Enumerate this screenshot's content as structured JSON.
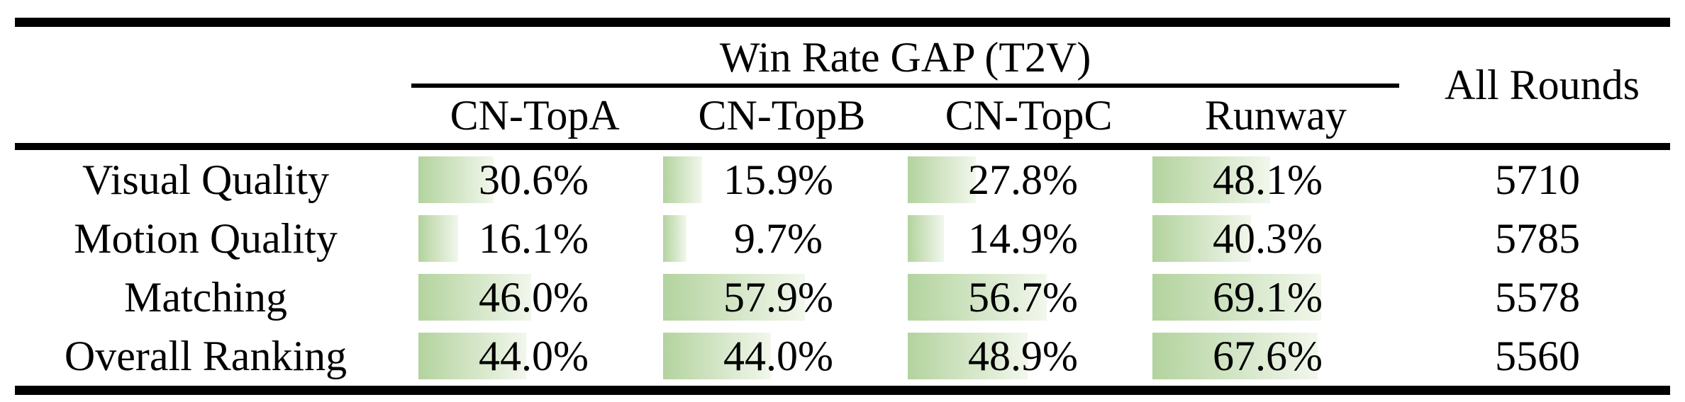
{
  "colors": {
    "bar_gradient_start": "#b3d39e",
    "bar_gradient_end": "#f2f7ec",
    "rule_color": "#000000",
    "background": "#ffffff"
  },
  "table": {
    "group_header": "Win Rate GAP (T2V)",
    "all_rounds_header": "All Rounds",
    "columns": [
      "CN-TopA",
      "CN-TopB",
      "CN-TopC",
      "Runway"
    ],
    "rows": [
      {
        "label": "Visual Quality",
        "cells": [
          {
            "text": "30.6%",
            "pct": 30.6
          },
          {
            "text": "15.9%",
            "pct": 15.9
          },
          {
            "text": "27.8%",
            "pct": 27.8
          },
          {
            "text": "48.1%",
            "pct": 48.1
          }
        ],
        "all_rounds": "5710"
      },
      {
        "label": "Motion Quality",
        "cells": [
          {
            "text": "16.1%",
            "pct": 16.1
          },
          {
            "text": "9.7%",
            "pct": 9.7
          },
          {
            "text": "14.9%",
            "pct": 14.9
          },
          {
            "text": "40.3%",
            "pct": 40.3
          }
        ],
        "all_rounds": "5785"
      },
      {
        "label": "Matching",
        "cells": [
          {
            "text": "46.0%",
            "pct": 46.0
          },
          {
            "text": "57.9%",
            "pct": 57.9
          },
          {
            "text": "56.7%",
            "pct": 56.7
          },
          {
            "text": "69.1%",
            "pct": 69.1
          }
        ],
        "all_rounds": "5578"
      },
      {
        "label": "Overall Ranking",
        "cells": [
          {
            "text": "44.0%",
            "pct": 44.0
          },
          {
            "text": "44.0%",
            "pct": 44.0
          },
          {
            "text": "48.9%",
            "pct": 48.9
          },
          {
            "text": "67.6%",
            "pct": 67.6
          }
        ],
        "all_rounds": "5560"
      }
    ]
  },
  "chart_data": {
    "type": "table",
    "title": "Win Rate GAP (T2V)",
    "columns": [
      "CN-TopA",
      "CN-TopB",
      "CN-TopC",
      "Runway",
      "All Rounds"
    ],
    "value_unit": "%",
    "legend_position": "none",
    "notes": "Green in-cell bars have width proportional to the win-rate-gap percentage, fading from green (left) to near-white (right).",
    "rows": [
      {
        "label": "Visual Quality",
        "values": [
          30.6,
          15.9,
          27.8,
          48.1
        ],
        "all_rounds": 5710
      },
      {
        "label": "Motion Quality",
        "values": [
          16.1,
          9.7,
          14.9,
          40.3
        ],
        "all_rounds": 5785
      },
      {
        "label": "Matching",
        "values": [
          46.0,
          57.9,
          56.7,
          69.1
        ],
        "all_rounds": 5578
      },
      {
        "label": "Overall Ranking",
        "values": [
          44.0,
          44.0,
          48.9,
          67.6
        ],
        "all_rounds": 5560
      }
    ]
  }
}
